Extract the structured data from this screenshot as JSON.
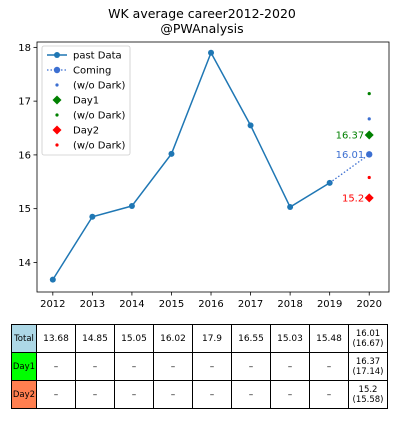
{
  "chart_data": {
    "type": "line",
    "title": [
      "WK average career2012-2020",
      "@PWAnalysis"
    ],
    "x_ticks": [
      "2012",
      "2013",
      "2014",
      "2015",
      "2016",
      "2017",
      "2018",
      "2019",
      "2020"
    ],
    "x_range": [
      2011.6,
      2020.5
    ],
    "y_range": [
      13.45,
      18.1
    ],
    "y_ticks": [
      "14",
      "15",
      "16",
      "17",
      "18"
    ],
    "grid": false,
    "legend_position": "top-left",
    "series": [
      {
        "name": "past Data",
        "kind": "line-marker",
        "color": "#1f77b4",
        "x": [
          2012,
          2013,
          2014,
          2015,
          2016,
          2017,
          2018,
          2019
        ],
        "y": [
          13.68,
          14.85,
          15.05,
          16.02,
          17.9,
          16.55,
          15.03,
          15.48
        ]
      },
      {
        "name": "Coming",
        "kind": "dotted-marker",
        "color": "#3c6fd1",
        "x": [
          2019,
          2020
        ],
        "y": [
          15.48,
          16.01
        ],
        "label": "16.01"
      },
      {
        "name": "(w/o Dark)",
        "kind": "point",
        "color": "#3c6fd1",
        "x": [
          2020
        ],
        "y": [
          16.67
        ]
      },
      {
        "name": "Day1",
        "kind": "diamond",
        "color": "#008000",
        "x": [
          2020
        ],
        "y": [
          16.37
        ],
        "label": "16.37"
      },
      {
        "name": "(w/o Dark)",
        "kind": "point",
        "color": "#008000",
        "x": [
          2020
        ],
        "y": [
          17.14
        ]
      },
      {
        "name": "Day2",
        "kind": "diamond",
        "color": "#ff0000",
        "x": [
          2020
        ],
        "y": [
          15.2
        ],
        "label": "15.2"
      },
      {
        "name": "(w/o Dark)",
        "kind": "point",
        "color": "#ff0000",
        "x": [
          2020
        ],
        "y": [
          15.58
        ]
      }
    ]
  },
  "table": {
    "rows": [
      {
        "label": "Total",
        "color": "#add8e6",
        "cells": [
          "13.68",
          "14.85",
          "15.05",
          "16.02",
          "17.9",
          "16.55",
          "15.03",
          "15.48"
        ],
        "last": [
          "16.01",
          "(16.67)"
        ]
      },
      {
        "label": "Day1",
        "color": "#00ff00",
        "cells": [
          "–",
          "–",
          "–",
          "–",
          "–",
          "–",
          "–",
          "–"
        ],
        "last": [
          "16.37",
          "(17.14)"
        ]
      },
      {
        "label": "Day2",
        "color": "#ff7f50",
        "cells": [
          "–",
          "–",
          "–",
          "–",
          "–",
          "–",
          "–",
          "–"
        ],
        "last": [
          "15.2",
          "(15.58)"
        ]
      }
    ]
  }
}
